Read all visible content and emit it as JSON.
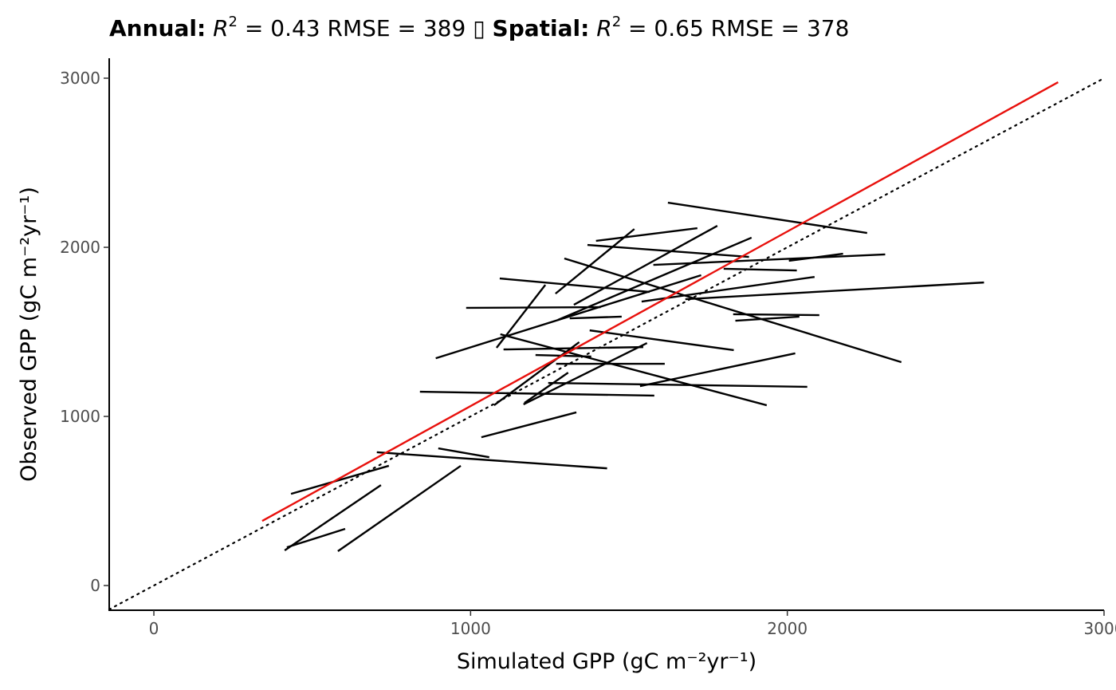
{
  "chart_data": {
    "type": "segments",
    "title": [
      "Annual:",
      "R",
      "2",
      "= 0.43  RMSE = 389",
      "▯",
      "Spatial:",
      "R",
      "2",
      "= 0.65  RMSE = 378"
    ],
    "xlabel": "Simulated GPP (gC m⁻²yr⁻¹)",
    "ylabel": "Observed GPP (gC m⁻²yr⁻¹)",
    "xlim": [
      -141,
      3000
    ],
    "ylim": [
      -146,
      3118
    ],
    "xticks": [
      0,
      1000,
      2000,
      3000
    ],
    "yticks": [
      0,
      1000,
      2000,
      3000
    ],
    "color": "#000000",
    "identity_line": true,
    "grid": false,
    "segments": [
      {
        "x": [
          1623,
          2252
        ],
        "y": [
          2264,
          2085
        ]
      },
      {
        "x": [
          1396,
          1716
        ],
        "y": [
          2038,
          2113
        ]
      },
      {
        "x": [
          1268,
          1517
        ],
        "y": [
          1726,
          2108
        ]
      },
      {
        "x": [
          1326,
          1779
        ],
        "y": [
          1660,
          2127
        ]
      },
      {
        "x": [
          1369,
          1879
        ],
        "y": [
          2014,
          1943
        ]
      },
      {
        "x": [
          2005,
          2176
        ],
        "y": [
          1920,
          1962
        ]
      },
      {
        "x": [
          1577,
          2309
        ],
        "y": [
          1896,
          1958
        ]
      },
      {
        "x": [
          1296,
          2360
        ],
        "y": [
          1934,
          1321
        ]
      },
      {
        "x": [
          1799,
          2030
        ],
        "y": [
          1873,
          1863
        ]
      },
      {
        "x": [
          1092,
          1565
        ],
        "y": [
          1816,
          1736
        ]
      },
      {
        "x": [
          986,
          1411
        ],
        "y": [
          1642,
          1646
        ]
      },
      {
        "x": [
          1276,
          1887
        ],
        "y": [
          1571,
          2057
        ]
      },
      {
        "x": [
          890,
          1728
        ],
        "y": [
          1344,
          1835
        ]
      },
      {
        "x": [
          1313,
          1477
        ],
        "y": [
          1580,
          1590
        ]
      },
      {
        "x": [
          1540,
          2086
        ],
        "y": [
          1679,
          1825
        ]
      },
      {
        "x": [
          1678,
          2621
        ],
        "y": [
          1693,
          1792
        ]
      },
      {
        "x": [
          1829,
          2101
        ],
        "y": [
          1604,
          1599
        ]
      },
      {
        "x": [
          1836,
          2038
        ],
        "y": [
          1566,
          1590
        ]
      },
      {
        "x": [
          1082,
          1236
        ],
        "y": [
          1406,
          1778
        ]
      },
      {
        "x": [
          1104,
          1545
        ],
        "y": [
          1396,
          1410
        ]
      },
      {
        "x": [
          1376,
          1831
        ],
        "y": [
          1509,
          1392
        ]
      },
      {
        "x": [
          1094,
          1935
        ],
        "y": [
          1486,
          1066
        ]
      },
      {
        "x": [
          1205,
          1381
        ],
        "y": [
          1363,
          1354
        ]
      },
      {
        "x": [
          1270,
          1613
        ],
        "y": [
          1311,
          1311
        ]
      },
      {
        "x": [
          1074,
          1343
        ],
        "y": [
          1066,
          1439
        ]
      },
      {
        "x": [
          1167,
          1557
        ],
        "y": [
          1071,
          1434
        ]
      },
      {
        "x": [
          1245,
          2063
        ],
        "y": [
          1198,
          1175
        ]
      },
      {
        "x": [
          1535,
          2025
        ],
        "y": [
          1179,
          1373
        ]
      },
      {
        "x": [
          1170,
          1308
        ],
        "y": [
          1080,
          1259
        ]
      },
      {
        "x": [
          840,
          1580
        ],
        "y": [
          1146,
          1123
        ]
      },
      {
        "x": [
          1034,
          1334
        ],
        "y": [
          877,
          1024
        ]
      },
      {
        "x": [
          898,
          1059
        ],
        "y": [
          811,
          759
        ]
      },
      {
        "x": [
          704,
          1431
        ],
        "y": [
          788,
          693
        ]
      },
      {
        "x": [
          433,
          742
        ],
        "y": [
          542,
          708
        ]
      },
      {
        "x": [
          413,
          717
        ],
        "y": [
          208,
          594
        ]
      },
      {
        "x": [
          420,
          604
        ],
        "y": [
          226,
          335
        ]
      },
      {
        "x": [
          581,
          969
        ],
        "y": [
          203,
          708
        ]
      }
    ],
    "fit": {
      "color": "#e8100c",
      "x": [
        342,
        2855
      ],
      "y": [
        382,
        2976
      ]
    }
  }
}
